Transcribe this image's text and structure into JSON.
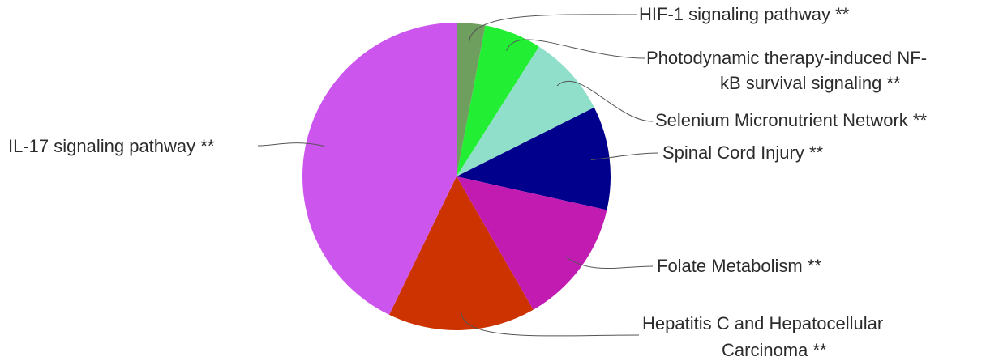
{
  "chart_data": {
    "type": "pie",
    "title": "",
    "legend": "none (direct labels with leader lines)",
    "slices": [
      {
        "label": "HIF-1 signaling pathway **",
        "value": 3.0,
        "color": "#6e9f5f"
      },
      {
        "label": "Photodynamic therapy-induced NF-kB survival signaling **",
        "value": 6.0,
        "color": "#22ee33"
      },
      {
        "label": "Selenium Micronutrient Network **",
        "value": 8.6,
        "color": "#8fdfca"
      },
      {
        "label": "Spinal Cord Injury **",
        "value": 10.9,
        "color": "#00008c"
      },
      {
        "label": "Folate Metabolism **",
        "value": 13.2,
        "color": "#c21bb2"
      },
      {
        "label": "Hepatitis C and Hepatocellular Carcinoma **",
        "value": 15.5,
        "color": "#cc3300"
      },
      {
        "label": "IL-17 signaling pathway **",
        "value": 42.8,
        "color": "#cc55ee"
      }
    ]
  }
}
